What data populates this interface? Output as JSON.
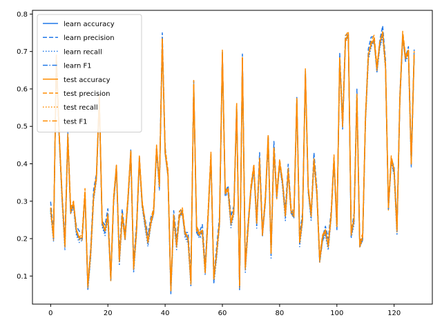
{
  "chart_data": {
    "type": "line",
    "title": "",
    "xlabel": "",
    "ylabel": "",
    "xlim": [
      -6.35,
      133.35
    ],
    "ylim": [
      0.025,
      0.81
    ],
    "xticks": [
      0,
      20,
      40,
      60,
      80,
      100,
      120
    ],
    "yticks": [
      0.1,
      0.2,
      0.3,
      0.4,
      0.5,
      0.6,
      0.7,
      0.8
    ],
    "grid": false,
    "legend_position": "top-left",
    "colors": {
      "learn": "#1f77e8",
      "test": "#ff8c00"
    },
    "x": [
      0,
      1,
      2,
      3,
      4,
      5,
      6,
      7,
      8,
      9,
      10,
      11,
      12,
      13,
      14,
      15,
      16,
      17,
      18,
      19,
      20,
      21,
      22,
      23,
      24,
      25,
      26,
      27,
      28,
      29,
      30,
      31,
      32,
      33,
      34,
      35,
      36,
      37,
      38,
      39,
      40,
      41,
      42,
      43,
      44,
      45,
      46,
      47,
      48,
      49,
      50,
      51,
      52,
      53,
      54,
      55,
      56,
      57,
      58,
      59,
      60,
      61,
      62,
      63,
      64,
      65,
      66,
      67,
      68,
      69,
      70,
      71,
      72,
      73,
      74,
      75,
      76,
      77,
      78,
      79,
      80,
      81,
      82,
      83,
      84,
      85,
      86,
      87,
      88,
      89,
      90,
      91,
      92,
      93,
      94,
      95,
      96,
      97,
      98,
      99,
      100,
      101,
      102,
      103,
      104,
      105,
      106,
      107,
      108,
      109,
      110,
      111,
      112,
      113,
      114,
      115,
      116,
      117,
      118,
      119,
      120,
      121,
      122,
      123,
      124,
      125,
      126,
      127
    ],
    "base": [
      0.28,
      0.2,
      0.68,
      0.47,
      0.31,
      0.18,
      0.47,
      0.27,
      0.29,
      0.22,
      0.2,
      0.2,
      0.32,
      0.07,
      0.16,
      0.31,
      0.36,
      0.57,
      0.24,
      0.22,
      0.26,
      0.09,
      0.3,
      0.39,
      0.14,
      0.26,
      0.2,
      0.3,
      0.43,
      0.12,
      0.22,
      0.41,
      0.29,
      0.24,
      0.19,
      0.24,
      0.27,
      0.44,
      0.34,
      0.73,
      0.43,
      0.37,
      0.06,
      0.26,
      0.18,
      0.26,
      0.27,
      0.21,
      0.2,
      0.08,
      0.61,
      0.22,
      0.21,
      0.22,
      0.11,
      0.26,
      0.42,
      0.09,
      0.16,
      0.24,
      0.69,
      0.32,
      0.33,
      0.24,
      0.27,
      0.55,
      0.07,
      0.68,
      0.12,
      0.23,
      0.33,
      0.39,
      0.24,
      0.41,
      0.21,
      0.3,
      0.47,
      0.16,
      0.44,
      0.31,
      0.4,
      0.35,
      0.26,
      0.38,
      0.27,
      0.26,
      0.57,
      0.19,
      0.25,
      0.64,
      0.33,
      0.26,
      0.41,
      0.32,
      0.14,
      0.2,
      0.22,
      0.18,
      0.26,
      0.41,
      0.23,
      0.68,
      0.5,
      0.73,
      0.74,
      0.21,
      0.25,
      0.58,
      0.18,
      0.2,
      0.52,
      0.69,
      0.72,
      0.73,
      0.65,
      0.72,
      0.75,
      0.66,
      0.28,
      0.41,
      0.38,
      0.22,
      0.57,
      0.74,
      0.68,
      0.7,
      0.4,
      0.69
    ],
    "series": [
      {
        "name": "learn accuracy",
        "group": "learn",
        "dash": "solid",
        "offset": 0.0
      },
      {
        "name": "learn precision",
        "group": "learn",
        "dash": "dashed",
        "offset": 0.02
      },
      {
        "name": "learn recall",
        "group": "learn",
        "dash": "dotted",
        "offset": -0.012
      },
      {
        "name": "learn F1",
        "group": "learn",
        "dash": "dashdot",
        "offset": -0.006
      },
      {
        "name": "test accuracy",
        "group": "test",
        "dash": "solid",
        "offset": 0.006
      },
      {
        "name": "test precision",
        "group": "test",
        "dash": "dashed",
        "offset": 0.014
      },
      {
        "name": "test recall",
        "group": "test",
        "dash": "dotted",
        "offset": -0.004
      },
      {
        "name": "test F1",
        "group": "test",
        "dash": "dashdot",
        "offset": 0.002
      }
    ]
  }
}
